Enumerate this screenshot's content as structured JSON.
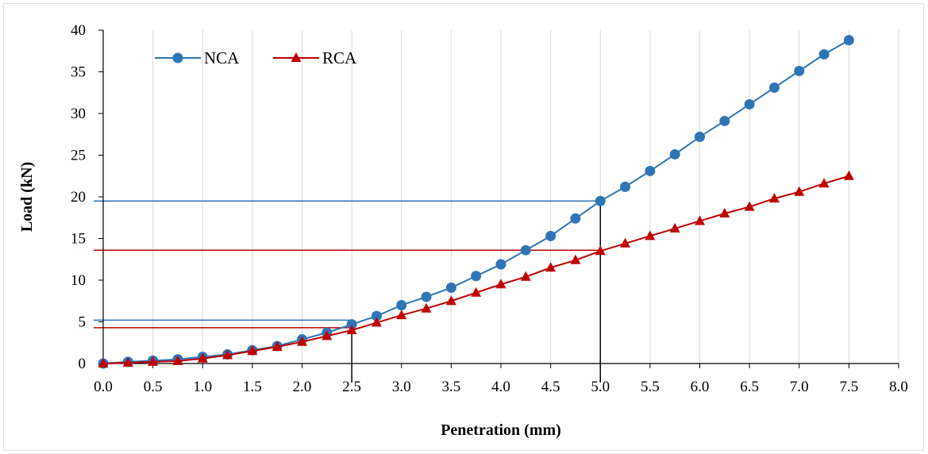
{
  "chart_data": {
    "type": "line",
    "xlabel": "Penetration (mm)",
    "ylabel": "Load (kN)",
    "xlim": [
      0,
      8
    ],
    "ylim": [
      0,
      40
    ],
    "x_ticks": [
      "0.0",
      "0.5",
      "1.0",
      "1.5",
      "2.0",
      "2.5",
      "3.0",
      "3.5",
      "4.0",
      "4.5",
      "5.0",
      "5.5",
      "6.0",
      "6.5",
      "7.0",
      "7.5",
      "8.0"
    ],
    "y_ticks": [
      "0",
      "5",
      "10",
      "15",
      "20",
      "25",
      "30",
      "35",
      "40"
    ],
    "grid": "vertical",
    "legend_position": "top-left",
    "x": [
      0,
      0.25,
      0.5,
      0.75,
      1.0,
      1.25,
      1.5,
      1.75,
      2.0,
      2.25,
      2.5,
      2.75,
      3.0,
      3.25,
      3.5,
      3.75,
      4.0,
      4.25,
      4.5,
      4.75,
      5.0,
      5.25,
      5.5,
      5.75,
      6.0,
      6.25,
      6.5,
      6.75,
      7.0,
      7.25,
      7.5
    ],
    "series": [
      {
        "name": "NCA",
        "color": "#2e75b6",
        "marker": "circle",
        "values": [
          0,
          0.2,
          0.35,
          0.5,
          0.8,
          1.1,
          1.6,
          2.1,
          2.9,
          3.7,
          4.7,
          5.7,
          7.0,
          8.0,
          9.1,
          10.5,
          11.9,
          13.6,
          15.3,
          17.4,
          19.5,
          21.2,
          23.1,
          25.1,
          27.2,
          29.1,
          31.1,
          33.1,
          35.1,
          37.1,
          38.8
        ]
      },
      {
        "name": "RCA",
        "color": "#c00000",
        "marker": "triangle",
        "values": [
          0,
          0.1,
          0.2,
          0.3,
          0.6,
          1.0,
          1.5,
          2.0,
          2.6,
          3.3,
          4.0,
          4.9,
          5.8,
          6.6,
          7.5,
          8.5,
          9.5,
          10.4,
          11.5,
          12.4,
          13.5,
          14.4,
          15.3,
          16.2,
          17.1,
          18.0,
          18.8,
          19.8,
          20.6,
          21.6,
          22.5
        ]
      }
    ],
    "reference_lines": [
      {
        "series": "NCA",
        "x": 2.5,
        "y": 5.2,
        "color": "#2e75b6"
      },
      {
        "series": "RCA",
        "x": 2.5,
        "y": 4.3,
        "color": "#c00000"
      },
      {
        "series": "NCA",
        "x": 5.0,
        "y": 19.5,
        "color": "#2e75b6"
      },
      {
        "series": "RCA",
        "x": 5.0,
        "y": 13.6,
        "color": "#c00000"
      }
    ]
  }
}
